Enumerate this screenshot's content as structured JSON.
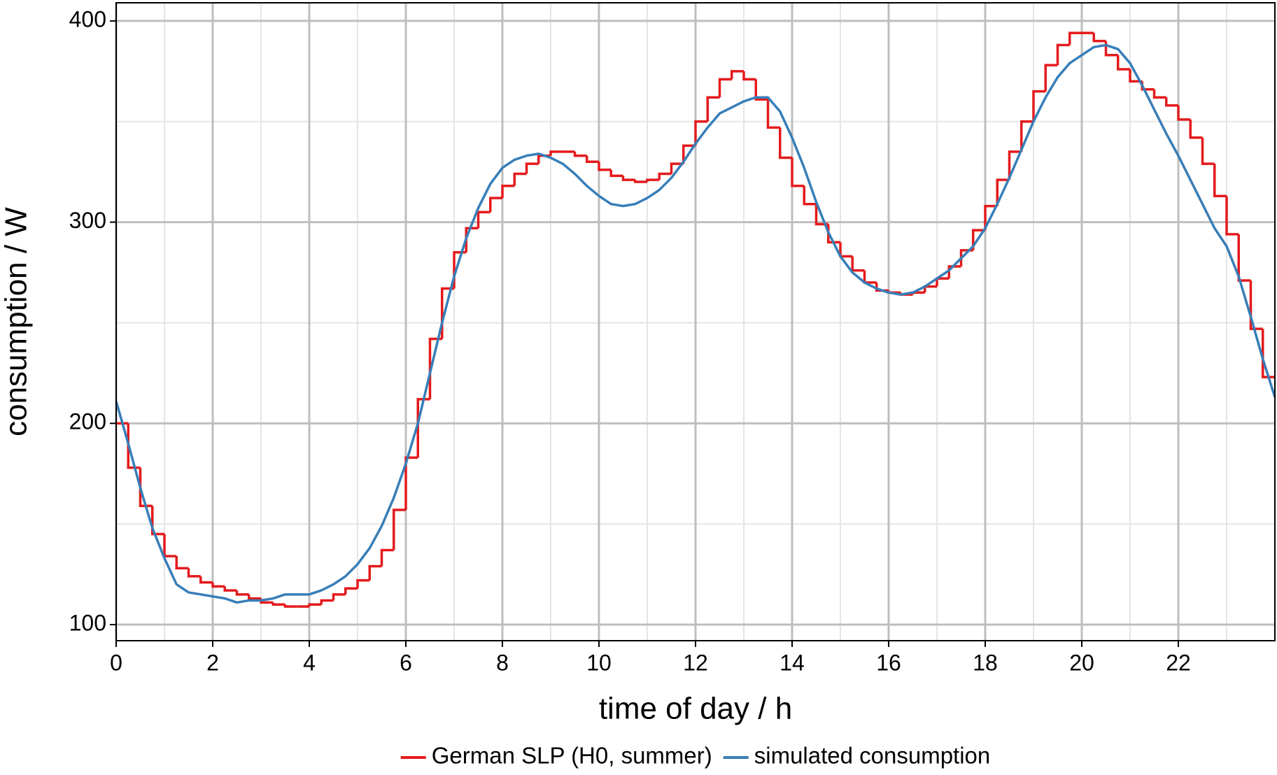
{
  "chart_data": {
    "type": "line",
    "xlabel": "time of day / h",
    "ylabel": "consumption / W",
    "xlim": [
      0,
      24
    ],
    "ylim": [
      92,
      409
    ],
    "xticks": [
      0,
      2,
      4,
      6,
      8,
      10,
      12,
      14,
      16,
      18,
      20,
      22
    ],
    "yticks": [
      100,
      200,
      300,
      400
    ],
    "xminor": [
      1,
      3,
      5,
      7,
      9,
      11,
      13,
      15,
      17,
      19,
      21,
      23
    ],
    "yminor": [
      150,
      250,
      350
    ],
    "grid": true,
    "legend": "bottom",
    "series": [
      {
        "name": "German SLP (H0, summer)",
        "color": "#e41a1c",
        "step": true,
        "x": [
          0,
          0.25,
          0.5,
          0.75,
          1,
          1.25,
          1.5,
          1.75,
          2,
          2.25,
          2.5,
          2.75,
          3,
          3.25,
          3.5,
          3.75,
          4,
          4.25,
          4.5,
          4.75,
          5,
          5.25,
          5.5,
          5.75,
          6,
          6.25,
          6.5,
          6.75,
          7,
          7.25,
          7.5,
          7.75,
          8,
          8.25,
          8.5,
          8.75,
          9,
          9.25,
          9.5,
          9.75,
          10,
          10.25,
          10.5,
          10.75,
          11,
          11.25,
          11.5,
          11.75,
          12,
          12.25,
          12.5,
          12.75,
          13,
          13.25,
          13.5,
          13.75,
          14,
          14.25,
          14.5,
          14.75,
          15,
          15.25,
          15.5,
          15.75,
          16,
          16.25,
          16.5,
          16.75,
          17,
          17.25,
          17.5,
          17.75,
          18,
          18.25,
          18.5,
          18.75,
          19,
          19.25,
          19.5,
          19.75,
          20,
          20.25,
          20.5,
          20.75,
          21,
          21.25,
          21.5,
          21.75,
          22,
          22.25,
          22.5,
          22.75,
          23,
          23.25,
          23.5,
          23.75
        ],
        "values": [
          200,
          178,
          159,
          145,
          134,
          128,
          124,
          121,
          119,
          117,
          115,
          113,
          111,
          110,
          109,
          109,
          110,
          112,
          115,
          118,
          122,
          129,
          137,
          157,
          183,
          212,
          242,
          267,
          285,
          297,
          305,
          312,
          318,
          324,
          329,
          333,
          335,
          335,
          333,
          330,
          326,
          323,
          321,
          320,
          321,
          324,
          329,
          338,
          350,
          362,
          371,
          375,
          371,
          361,
          347,
          332,
          318,
          309,
          299,
          290,
          283,
          276,
          270,
          266,
          265,
          264,
          265,
          268,
          272,
          278,
          286,
          296,
          308,
          321,
          335,
          350,
          365,
          378,
          388,
          394,
          394,
          390,
          383,
          376,
          370,
          366,
          362,
          358,
          351,
          342,
          329,
          313,
          294,
          271,
          247,
          223
        ]
      },
      {
        "name": "simulated consumption",
        "color": "#377eb8",
        "step": false,
        "x": [
          0,
          0.25,
          0.5,
          0.75,
          1,
          1.25,
          1.5,
          1.75,
          2,
          2.25,
          2.5,
          2.75,
          3,
          3.25,
          3.5,
          3.75,
          4,
          4.25,
          4.5,
          4.75,
          5,
          5.25,
          5.5,
          5.75,
          6,
          6.25,
          6.5,
          6.75,
          7,
          7.25,
          7.5,
          7.75,
          8,
          8.25,
          8.5,
          8.75,
          9,
          9.25,
          9.5,
          9.75,
          10,
          10.25,
          10.5,
          10.75,
          11,
          11.25,
          11.5,
          11.75,
          12,
          12.25,
          12.5,
          12.75,
          13,
          13.25,
          13.5,
          13.75,
          14,
          14.25,
          14.5,
          14.75,
          15,
          15.25,
          15.5,
          15.75,
          16,
          16.25,
          16.5,
          16.75,
          17,
          17.25,
          17.5,
          17.75,
          18,
          18.25,
          18.5,
          18.75,
          19,
          19.25,
          19.5,
          19.75,
          20,
          20.25,
          20.5,
          20.75,
          21,
          21.25,
          21.5,
          21.75,
          22,
          22.25,
          22.5,
          22.75,
          23,
          23.25,
          23.5,
          23.75,
          24
        ],
        "values": [
          211,
          190,
          168,
          148,
          133,
          120,
          116,
          115,
          114,
          113,
          111,
          112,
          112,
          113,
          115,
          115,
          115,
          117,
          120,
          124,
          130,
          138,
          149,
          163,
          180,
          200,
          225,
          250,
          273,
          292,
          307,
          319,
          327,
          331,
          333,
          334,
          332,
          329,
          324,
          318,
          313,
          309,
          308,
          309,
          312,
          316,
          322,
          330,
          339,
          347,
          354,
          357,
          360,
          362,
          362,
          355,
          342,
          327,
          310,
          295,
          283,
          275,
          270,
          267,
          265,
          264,
          265,
          268,
          272,
          276,
          282,
          288,
          297,
          309,
          322,
          336,
          350,
          362,
          372,
          379,
          383,
          387,
          388,
          386,
          379,
          368,
          356,
          344,
          333,
          321,
          309,
          297,
          288,
          273,
          253,
          232,
          213
        ]
      }
    ]
  }
}
